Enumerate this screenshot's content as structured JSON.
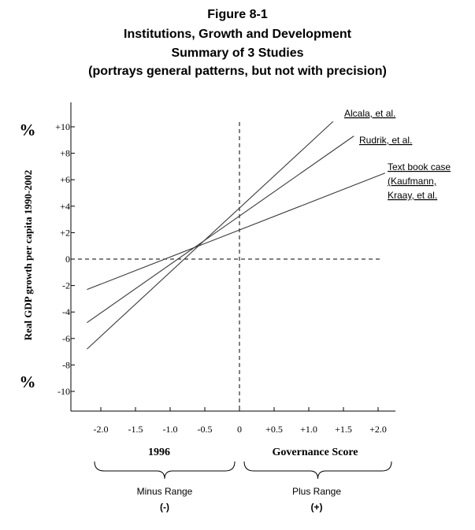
{
  "title_lines": [
    "Figure 8-1",
    "Institutions, Growth and Development",
    "Summary of 3 Studies",
    "(portrays general patterns, but not with precision)"
  ],
  "chart_data": {
    "type": "line",
    "ylabel": "Real GDP growth per capita 1990-2002",
    "y_unit_top": "%",
    "y_unit_bottom": "%",
    "xlabel_left": "1996",
    "xlabel_right": "Governance Score",
    "x_ticks": [
      {
        "value": -2.0,
        "label": "-2.0"
      },
      {
        "value": -1.5,
        "label": "-1.5"
      },
      {
        "value": -1.0,
        "label": "-1.0"
      },
      {
        "value": -0.5,
        "label": "-0.5"
      },
      {
        "value": 0,
        "label": "0"
      },
      {
        "value": 0.5,
        "label": "+0.5"
      },
      {
        "value": 1.0,
        "label": "+1.0"
      },
      {
        "value": 1.5,
        "label": "+1.5"
      },
      {
        "value": 2.0,
        "label": "+2.0"
      }
    ],
    "y_ticks": [
      {
        "value": 10,
        "label": "+10"
      },
      {
        "value": 8,
        "label": "+8"
      },
      {
        "value": 6,
        "label": "+6"
      },
      {
        "value": 4,
        "label": "+4"
      },
      {
        "value": 2,
        "label": "+2"
      },
      {
        "value": 0,
        "label": "0"
      },
      {
        "value": -2,
        "label": "-2"
      },
      {
        "value": -4,
        "label": "-4"
      },
      {
        "value": -6,
        "label": "-6"
      },
      {
        "value": -8,
        "label": "-8"
      },
      {
        "value": -10,
        "label": "-10"
      }
    ],
    "xlim": [
      -2.35,
      2.25
    ],
    "ylim": [
      -11.5,
      12
    ],
    "series": [
      {
        "name": "Alcala, et al.",
        "x": [
          -2.2,
          1.35
        ],
        "y": [
          -6.8,
          10.4
        ]
      },
      {
        "name": "Rudrik, et al.",
        "x": [
          -2.2,
          1.65
        ],
        "y": [
          -4.8,
          9.3
        ]
      },
      {
        "name": "Text book case (Kaufmann, Kraay, et al.",
        "label_lines": [
          "Text book case",
          "(Kaufmann,",
          "Kraay, et al."
        ],
        "x": [
          -2.2,
          2.1
        ],
        "y": [
          -2.3,
          6.5
        ]
      }
    ],
    "range_labels": [
      {
        "name": "Minus Range",
        "sign": "(-)"
      },
      {
        "name": "Plus Range",
        "sign": "(+)"
      }
    ]
  }
}
